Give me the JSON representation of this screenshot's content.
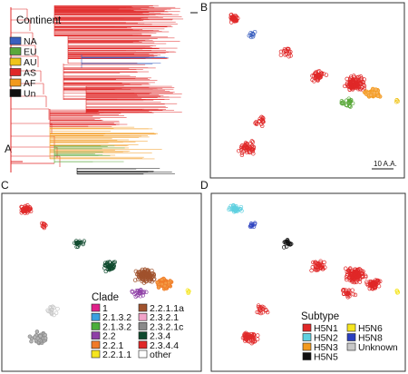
{
  "panels": [
    {
      "letter": "A"
    },
    {
      "letter": "B",
      "scale_label": "10 A.A."
    },
    {
      "letter": "C"
    },
    {
      "letter": "D"
    }
  ],
  "legends": {
    "continent": {
      "title": "Continent",
      "items": [
        {
          "label": "NA",
          "color": "#3a5fbf"
        },
        {
          "label": "EU",
          "color": "#5aa83a"
        },
        {
          "label": "AU",
          "color": "#f0c419"
        },
        {
          "label": "AS",
          "color": "#e02828"
        },
        {
          "label": "AF",
          "color": "#f39a1e"
        },
        {
          "label": "Un",
          "color": "#111111"
        }
      ]
    },
    "clade": {
      "title": "Clade",
      "col1": [
        {
          "label": "1",
          "color": "#e0218a"
        },
        {
          "label": "2.1.3.2",
          "color": "#3aa0e0"
        },
        {
          "label": "2.1.3.2",
          "color": "#4aae3a"
        },
        {
          "label": "2.2",
          "color": "#8e3fa6"
        },
        {
          "label": "2.2.1",
          "color": "#f07a28"
        },
        {
          "label": "2.2.1.1",
          "color": "#f5e51e"
        }
      ],
      "col2": [
        {
          "label": "2.2.1.1a",
          "color": "#a0522d"
        },
        {
          "label": "2.3.2.1",
          "color": "#f2a3c8"
        },
        {
          "label": "2.3.2.1c",
          "color": "#8a8a8a"
        },
        {
          "label": "2.3.4",
          "color": "#0f4a2e"
        },
        {
          "label": "2.3.4.4",
          "color": "#e02828"
        },
        {
          "label": "other",
          "color": "#ffffff"
        }
      ]
    },
    "subtype": {
      "title": "Subtype",
      "col1": [
        {
          "label": "H5N1",
          "color": "#e02828"
        },
        {
          "label": "H5N2",
          "color": "#5fd0e0"
        },
        {
          "label": "H5N3",
          "color": "#f39a1e"
        },
        {
          "label": "H5N5",
          "color": "#111111"
        }
      ],
      "col2": [
        {
          "label": "H5N6",
          "color": "#f5e51e"
        },
        {
          "label": "H5N8",
          "color": "#2a3fbf"
        },
        {
          "label": "Unknown",
          "color": "#c8c8c8"
        }
      ]
    }
  }
}
